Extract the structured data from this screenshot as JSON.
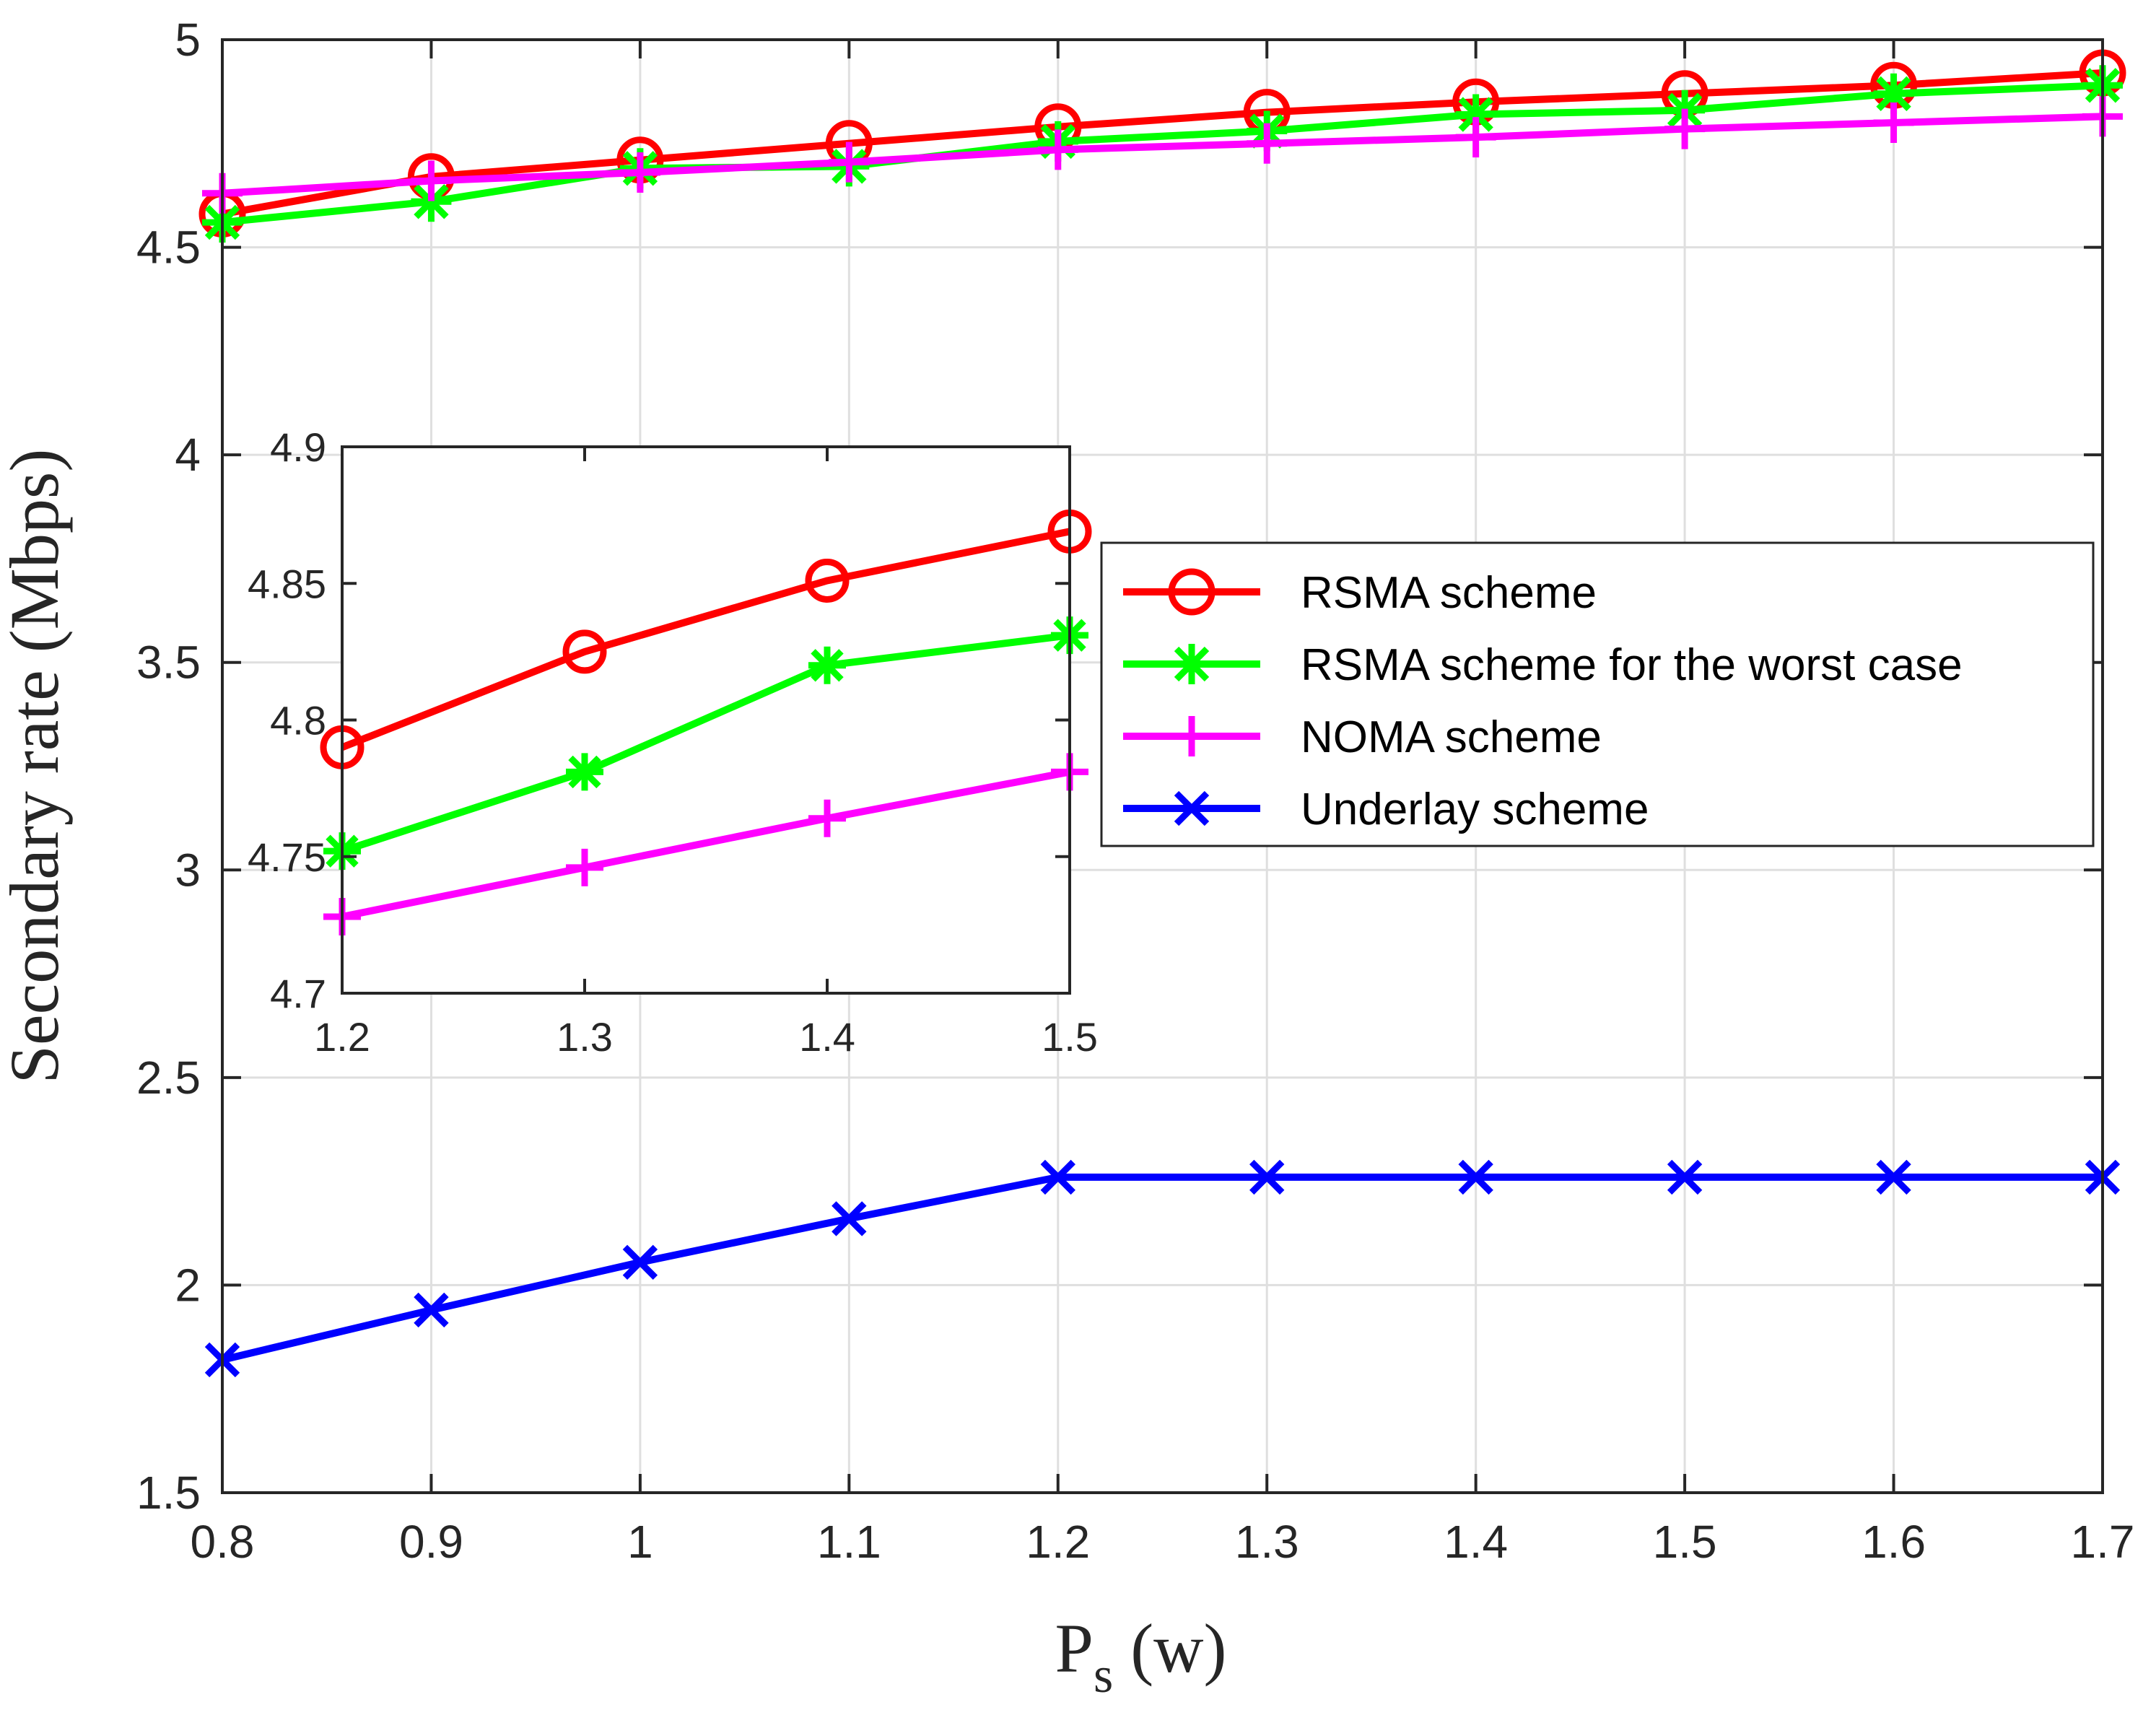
{
  "chart_data": {
    "type": "line",
    "xlabel_main": "P",
    "xlabel_sub": "s",
    "xlabel_unit": " (w)",
    "ylabel": "Secondary rate (Mbps)",
    "xlim": [
      0.8,
      1.7
    ],
    "ylim": [
      1.5,
      5
    ],
    "x_ticks": [
      "0.8",
      "0.9",
      "1",
      "1.1",
      "1.2",
      "1.3",
      "1.4",
      "1.5",
      "1.6",
      "1.7"
    ],
    "y_ticks": [
      "1.5",
      "2",
      "2.5",
      "3",
      "3.5",
      "4",
      "4.5",
      "5"
    ],
    "grid": true,
    "legend_position": "right-center",
    "series": [
      {
        "name": "RSMA scheme",
        "color": "#ff0000",
        "marker": "circle",
        "x": [
          0.8,
          0.9,
          1.0,
          1.1,
          1.2,
          1.3,
          1.4,
          1.5,
          1.6,
          1.7
        ],
        "y": [
          4.58,
          4.67,
          4.71,
          4.75,
          4.79,
          4.825,
          4.85,
          4.87,
          4.89,
          4.92
        ]
      },
      {
        "name": "RSMA scheme for the worst case",
        "color": "#00ff00",
        "marker": "asterisk",
        "x": [
          0.8,
          0.9,
          1.0,
          1.1,
          1.2,
          1.3,
          1.4,
          1.5,
          1.6,
          1.7
        ],
        "y": [
          4.56,
          4.61,
          4.69,
          4.695,
          4.755,
          4.78,
          4.82,
          4.83,
          4.87,
          4.89
        ]
      },
      {
        "name": "NOMA scheme",
        "color": "#ff00ff",
        "marker": "plus",
        "x": [
          0.8,
          0.9,
          1.0,
          1.1,
          1.2,
          1.3,
          1.4,
          1.5,
          1.6,
          1.7
        ],
        "y": [
          4.63,
          4.66,
          4.68,
          4.705,
          4.735,
          4.75,
          4.765,
          4.785,
          4.8,
          4.815
        ]
      },
      {
        "name": "Underlay scheme",
        "color": "#0000ff",
        "marker": "x",
        "x": [
          0.8,
          0.9,
          1.0,
          1.1,
          1.2,
          1.3,
          1.4,
          1.5,
          1.6,
          1.7
        ],
        "y": [
          1.82,
          1.94,
          2.055,
          2.16,
          2.26,
          2.26,
          2.26,
          2.26,
          2.26,
          2.26
        ]
      }
    ],
    "inset": {
      "xlim": [
        1.2,
        1.5
      ],
      "ylim": [
        4.7,
        4.9
      ],
      "x_ticks": [
        "1.2",
        "1.3",
        "1.4",
        "1.5"
      ],
      "y_ticks": [
        "4.7",
        "4.75",
        "4.8",
        "4.85",
        "4.9"
      ],
      "grid": false,
      "series": [
        {
          "color": "#ff0000",
          "marker": "circle",
          "x": [
            1.2,
            1.3,
            1.4,
            1.5
          ],
          "y": [
            4.79,
            4.825,
            4.851,
            4.869
          ]
        },
        {
          "color": "#00ff00",
          "marker": "asterisk",
          "x": [
            1.2,
            1.3,
            1.4,
            1.5
          ],
          "y": [
            4.752,
            4.781,
            4.82,
            4.831
          ]
        },
        {
          "color": "#ff00ff",
          "marker": "plus",
          "x": [
            1.2,
            1.3,
            1.4,
            1.5
          ],
          "y": [
            4.728,
            4.746,
            4.764,
            4.781
          ]
        }
      ]
    }
  }
}
